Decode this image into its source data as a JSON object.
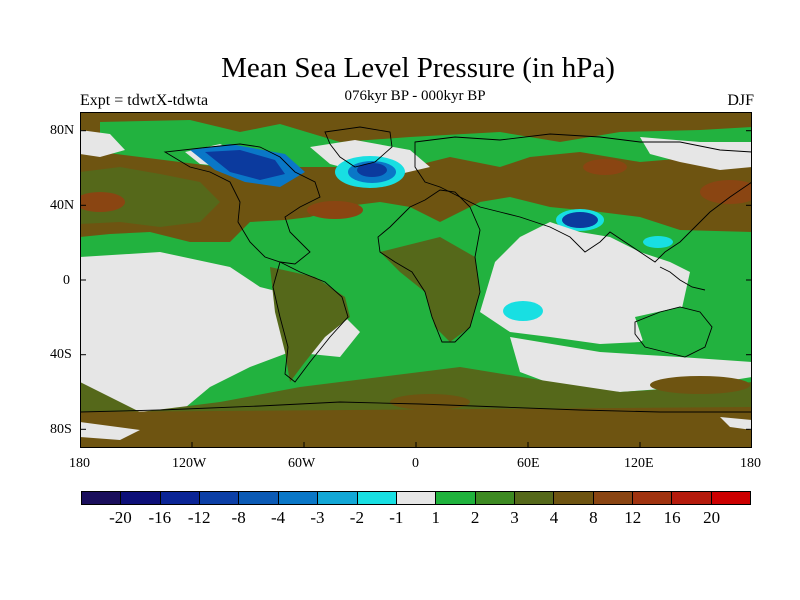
{
  "title": "Mean Sea Level Pressure (in hPa)",
  "subtitle": "076kyr BP - 000kyr BP",
  "left_label": "Expt = tdwtX-tdwta",
  "right_label": "DJF",
  "lat_labels": [
    "80N",
    "40N",
    "0",
    "40S",
    "80S"
  ],
  "lon_labels": [
    "180",
    "120W",
    "60W",
    "0",
    "60E",
    "120E",
    "180"
  ],
  "colorbar": {
    "labels": [
      "-20",
      "-16",
      "-12",
      "-8",
      "-4",
      "-3",
      "-2",
      "-1",
      "1",
      "2",
      "3",
      "4",
      "8",
      "12",
      "16",
      "20"
    ],
    "colors": [
      "#1a0e5c",
      "#0d0f78",
      "#0b2596",
      "#0c3fa6",
      "#0b5ab5",
      "#0a77c7",
      "#12a7d6",
      "#18dfe2",
      "#e6e6e6",
      "#1fb23c",
      "#3d8a22",
      "#55681a",
      "#6e5411",
      "#8a4512",
      "#a0330f",
      "#b51b0c",
      "#cc0000"
    ]
  },
  "map_colors": {
    "ocean_base": "#22b23f",
    "brown": "#6e5411",
    "olive": "#55681a",
    "grey": "#e6e6e6",
    "deep_blue": "#0b3a9e",
    "mid_blue": "#0a77c7",
    "cyan": "#18dfe2",
    "rust": "#8a4512"
  }
}
